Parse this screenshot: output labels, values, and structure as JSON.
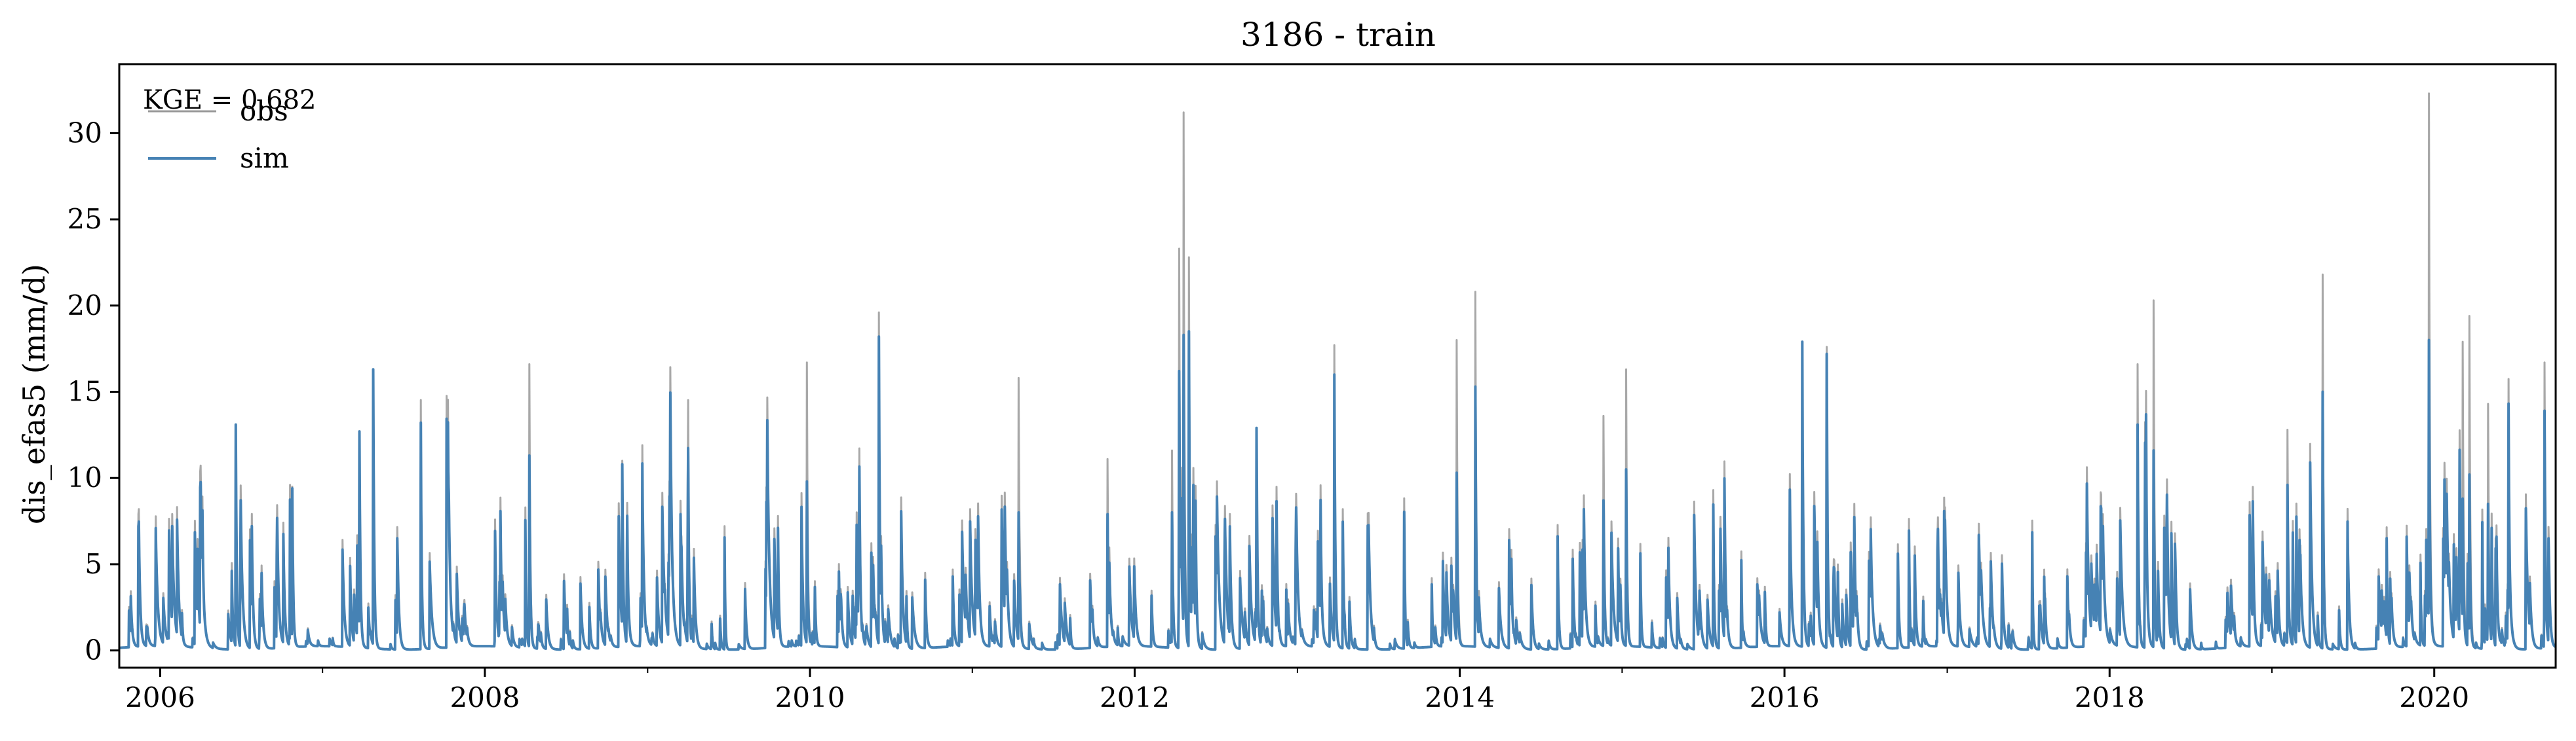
{
  "chart_data": {
    "type": "line",
    "title": "3186 - train",
    "xlabel": "",
    "ylabel": "dis_efas5 (mm/d)",
    "x_range": [
      "2005-10-01",
      "2020-09-30"
    ],
    "ylim": [
      -1,
      34
    ],
    "x_ticks": [
      "2006",
      "2008",
      "2010",
      "2012",
      "2014",
      "2016",
      "2018",
      "2020"
    ],
    "y_ticks": [
      0,
      5,
      10,
      15,
      20,
      25,
      30
    ],
    "grid": false,
    "legend_position": "top-left",
    "annotation": "KGE = 0.682",
    "series": [
      {
        "name": "obs",
        "color": "#999999",
        "peaks": [
          [
            "2006-06-20",
            13.0
          ],
          [
            "2006-10-25",
            9.5
          ],
          [
            "2007-03-25",
            12.5
          ],
          [
            "2007-04-25",
            16.3
          ],
          [
            "2008-04-10",
            16.6
          ],
          [
            "2008-11-05",
            11.0
          ],
          [
            "2009-04-01",
            9.7
          ],
          [
            "2009-12-25",
            16.7
          ],
          [
            "2010-06-05",
            19.6
          ],
          [
            "2011-04-15",
            15.8
          ],
          [
            "2011-11-01",
            11.1
          ],
          [
            "2012-03-25",
            11.6
          ],
          [
            "2012-04-10",
            23.3
          ],
          [
            "2012-04-20",
            31.2
          ],
          [
            "2012-05-02",
            22.8
          ],
          [
            "2012-10-01",
            12.8
          ],
          [
            "2013-03-25",
            17.7
          ],
          [
            "2013-12-25",
            18.0
          ],
          [
            "2014-02-05",
            20.8
          ],
          [
            "2014-11-20",
            13.6
          ],
          [
            "2015-01-10",
            16.3
          ],
          [
            "2016-02-10",
            17.8
          ],
          [
            "2016-04-05",
            17.6
          ],
          [
            "2018-03-05",
            16.6
          ],
          [
            "2018-04-10",
            20.3
          ],
          [
            "2019-02-05",
            12.8
          ],
          [
            "2019-04-25",
            21.8
          ],
          [
            "2019-12-20",
            32.3
          ],
          [
            "2020-03-05",
            17.9
          ],
          [
            "2020-03-20",
            19.4
          ],
          [
            "2020-05-01",
            14.3
          ],
          [
            "2020-09-05",
            16.7
          ]
        ]
      },
      {
        "name": "sim",
        "color": "#4682b4",
        "peaks": [
          [
            "2006-06-20",
            13.1
          ],
          [
            "2006-10-25",
            9.4
          ],
          [
            "2007-03-25",
            12.7
          ],
          [
            "2007-04-25",
            16.3
          ],
          [
            "2008-04-10",
            11.3
          ],
          [
            "2008-11-05",
            10.8
          ],
          [
            "2009-04-01",
            6.5
          ],
          [
            "2009-12-25",
            9.8
          ],
          [
            "2010-06-05",
            18.2
          ],
          [
            "2011-04-15",
            8.0
          ],
          [
            "2011-11-01",
            7.9
          ],
          [
            "2012-03-25",
            8.0
          ],
          [
            "2012-04-10",
            16.2
          ],
          [
            "2012-04-20",
            18.3
          ],
          [
            "2012-05-02",
            18.5
          ],
          [
            "2012-10-01",
            12.9
          ],
          [
            "2013-03-25",
            16.0
          ],
          [
            "2013-12-25",
            10.3
          ],
          [
            "2014-02-05",
            15.3
          ],
          [
            "2014-11-20",
            8.7
          ],
          [
            "2015-01-10",
            10.5
          ],
          [
            "2016-02-10",
            17.9
          ],
          [
            "2016-04-05",
            17.2
          ],
          [
            "2018-03-05",
            13.1
          ],
          [
            "2018-04-10",
            11.6
          ],
          [
            "2019-02-05",
            9.6
          ],
          [
            "2019-04-25",
            15.0
          ],
          [
            "2019-12-20",
            18.0
          ],
          [
            "2020-03-05",
            8.8
          ],
          [
            "2020-03-20",
            10.2
          ],
          [
            "2020-05-01",
            8.5
          ],
          [
            "2020-09-05",
            13.9
          ]
        ]
      }
    ]
  }
}
